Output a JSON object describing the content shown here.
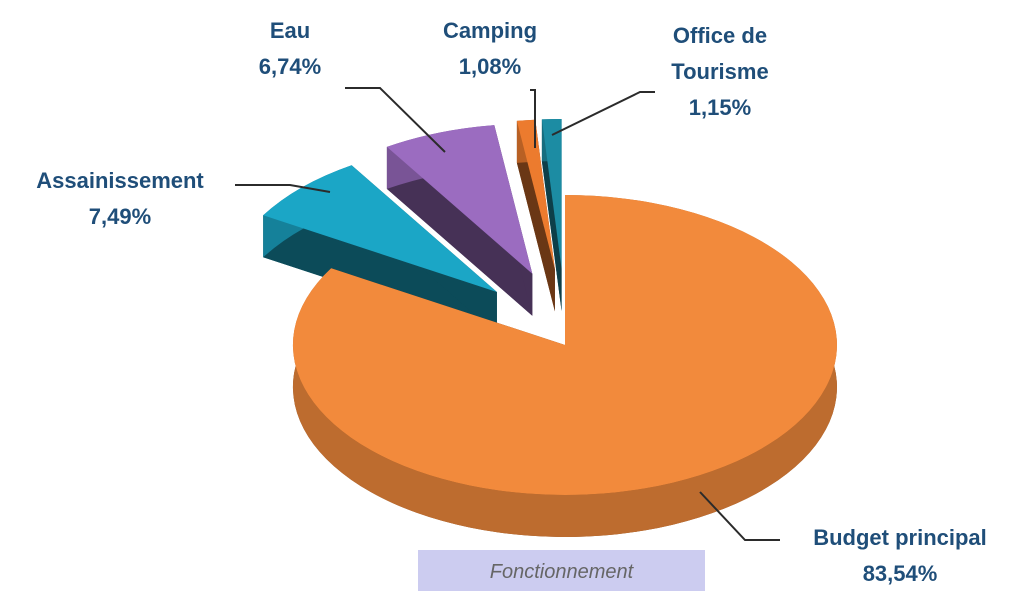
{
  "chart_data": {
    "type": "pie",
    "categories": [
      "Budget principal",
      "Assainissement",
      "Eau",
      "Camping",
      "Office de Tourisme"
    ],
    "values": [
      83.54,
      7.49,
      6.74,
      1.08,
      1.15
    ],
    "value_labels": [
      "83,54%",
      "7,49%",
      "6,74%",
      "1,08%",
      "1,15%"
    ],
    "colors": [
      "#f28a3c",
      "#1ba6c6",
      "#9b6cc0",
      "#ec7b2e",
      "#1c8ca3"
    ],
    "caption": "Fonctionnement"
  }
}
